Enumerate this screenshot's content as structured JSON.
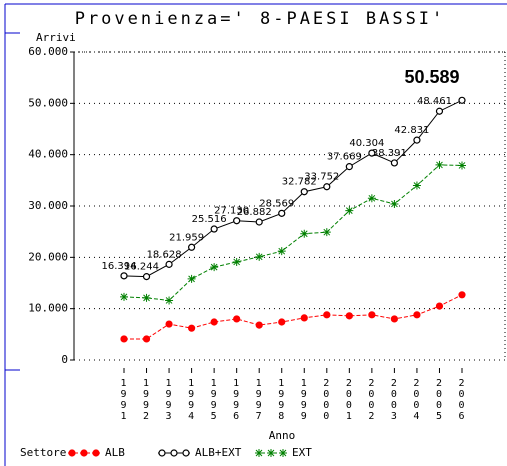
{
  "chart_data": {
    "type": "line",
    "title": "Provenienza=' 8-PAESI BASSI'",
    "y_label": "Arrivi",
    "x_label": "Anno",
    "legend_title": "Settore",
    "categories": [
      "1991",
      "1992",
      "1993",
      "1994",
      "1995",
      "1996",
      "1997",
      "1998",
      "1999",
      "2000",
      "2001",
      "2002",
      "2003",
      "2004",
      "2005",
      "2006"
    ],
    "ylim": [
      0,
      60000
    ],
    "yticks": [
      0,
      {
        "value": 10000,
        "label": "10.000"
      },
      {
        "value": 20000,
        "label": "20.000"
      },
      {
        "value": 30000,
        "label": "30.000"
      },
      {
        "value": 40000,
        "label": "40.000"
      },
      {
        "value": 50000,
        "label": "50.000"
      },
      {
        "value": 60000,
        "label": "60.000"
      }
    ],
    "grid": true,
    "series": [
      {
        "name": "ALB",
        "color": "#ff0000",
        "marker": "filled-circle",
        "dashed": true,
        "values": [
          4100,
          4100,
          7000,
          6200,
          7400,
          8000,
          6800,
          7400,
          8200,
          8800,
          8600,
          8800,
          8000,
          8800,
          10500,
          12700
        ]
      },
      {
        "name": "ALB+EXT",
        "color": "#000000",
        "marker": "open-circle",
        "dashed": false,
        "values": [
          16394,
          16244,
          18628,
          21959,
          25516,
          27130,
          26882,
          28569,
          32782,
          33752,
          37669,
          40304,
          38391,
          42831,
          48461,
          50589
        ],
        "value_labels": [
          "16.394",
          "16.244",
          "18.628",
          "21.959",
          "25.516",
          "27.130",
          "26.882",
          "28.569",
          "32.782",
          "33.752",
          "37.669",
          "40.304",
          "38.391",
          "42.831",
          "48.461",
          "50.589"
        ]
      },
      {
        "name": "EXT",
        "color": "#008000",
        "marker": "star",
        "dashed": true,
        "values": [
          12300,
          12100,
          11600,
          15800,
          18100,
          19100,
          20100,
          21200,
          24600,
          24900,
          29100,
          31500,
          30400,
          34000,
          38000,
          37900
        ]
      }
    ]
  }
}
